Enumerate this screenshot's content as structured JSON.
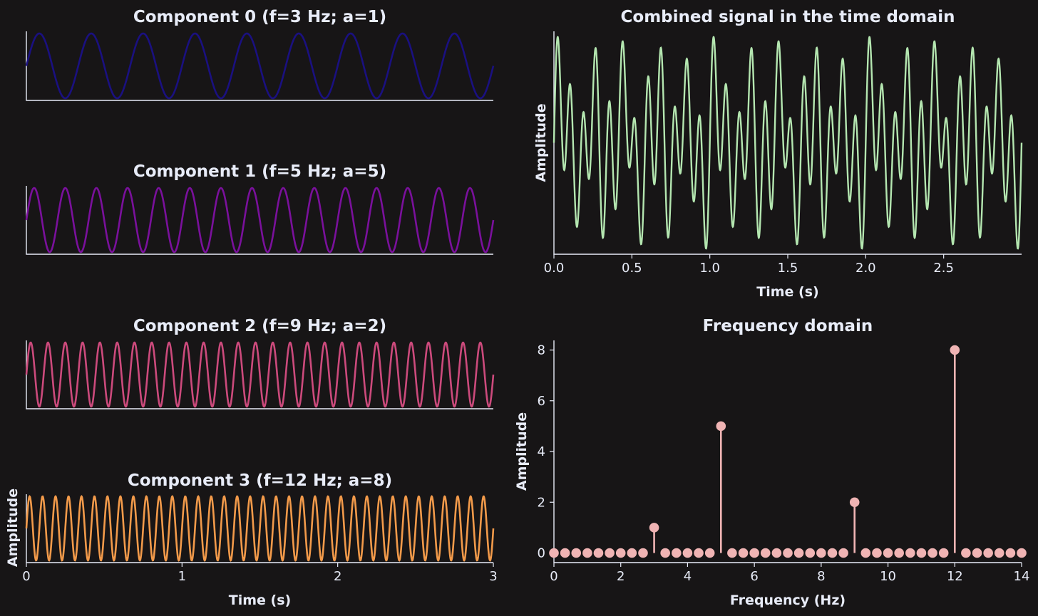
{
  "chart_data": [
    {
      "id": "component-0",
      "type": "line",
      "title": "Component 0 (f=3 Hz; a=1)",
      "frequency_hz": 3,
      "amplitude": 1,
      "color": "#1a1080",
      "xlabel": "",
      "ylabel": "",
      "xlim": [
        0,
        3
      ],
      "x_ticks": []
    },
    {
      "id": "component-1",
      "type": "line",
      "title": "Component 1 (f=5 Hz; a=5)",
      "frequency_hz": 5,
      "amplitude": 5,
      "color": "#7a109c",
      "xlabel": "",
      "ylabel": "",
      "xlim": [
        0,
        3
      ],
      "x_ticks": []
    },
    {
      "id": "component-2",
      "type": "line",
      "title": "Component 2 (f=9 Hz; a=2)",
      "frequency_hz": 9,
      "amplitude": 2,
      "color": "#cc4a7c",
      "xlabel": "",
      "ylabel": "",
      "xlim": [
        0,
        3
      ],
      "x_ticks": []
    },
    {
      "id": "component-3",
      "type": "line",
      "title": "Component 3 (f=12 Hz; a=8)",
      "frequency_hz": 12,
      "amplitude": 8,
      "color": "#f29a4a",
      "xlabel": "Time (s)",
      "ylabel": "Amplitude",
      "xlim": [
        0,
        3
      ],
      "x_ticks": [
        "0",
        "1",
        "2",
        "3"
      ]
    },
    {
      "id": "combined",
      "type": "line",
      "title": "Combined signal in the time domain",
      "color": "#b4e6b0",
      "xlabel": "Time (s)",
      "ylabel": "Amplitude",
      "xlim": [
        0,
        3
      ],
      "x_ticks": [
        "0.0",
        "0.5",
        "1.0",
        "1.5",
        "2.0",
        "2.5"
      ]
    },
    {
      "id": "frequency",
      "type": "stem",
      "title": "Frequency domain",
      "color": "#f0b4b4",
      "xlabel": "Frequency (Hz)",
      "ylabel": "Amplitude",
      "xlim": [
        0,
        14
      ],
      "ylim": [
        0,
        8
      ],
      "x_ticks": [
        "0",
        "2",
        "4",
        "6",
        "8",
        "10",
        "12",
        "14"
      ],
      "y_ticks": [
        "0",
        "2",
        "4",
        "6",
        "8"
      ],
      "x": [
        0,
        0.333,
        0.667,
        1,
        1.333,
        1.667,
        2,
        2.333,
        2.667,
        3,
        3.333,
        3.667,
        4,
        4.333,
        4.667,
        5,
        5.333,
        5.667,
        6,
        6.333,
        6.667,
        7,
        7.333,
        7.667,
        8,
        8.333,
        8.667,
        9,
        9.333,
        9.667,
        10,
        10.333,
        10.667,
        11,
        11.333,
        11.667,
        12,
        12.333,
        12.667,
        13,
        13.333,
        13.667,
        14
      ],
      "values": [
        0,
        0,
        0,
        0,
        0,
        0,
        0,
        0,
        0,
        1,
        0,
        0,
        0,
        0,
        0,
        5,
        0,
        0,
        0,
        0,
        0,
        0,
        0,
        0,
        0,
        0,
        0,
        2,
        0,
        0,
        0,
        0,
        0,
        0,
        0,
        0,
        8,
        0,
        0,
        0,
        0,
        0,
        0
      ]
    }
  ]
}
